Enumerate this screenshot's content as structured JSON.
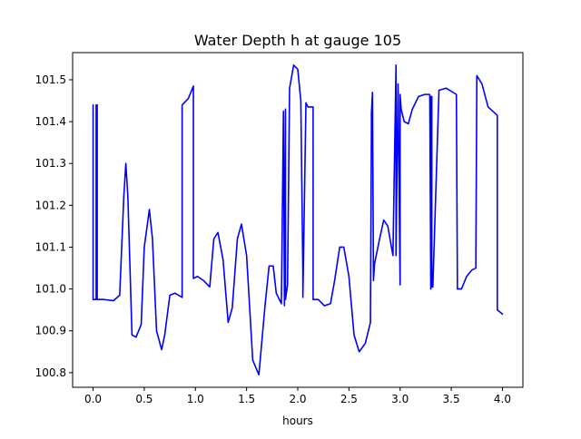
{
  "figure": {
    "title": "Water Depth h at gauge 105",
    "xlabel": "hours"
  },
  "chart_data": {
    "type": "line",
    "title": "Water Depth h at gauge 105",
    "xlabel": "hours",
    "ylabel": "",
    "xlim": [
      -0.2,
      4.2
    ],
    "ylim": [
      100.765,
      101.565
    ],
    "xticks": [
      0.0,
      0.5,
      1.0,
      1.5,
      2.0,
      2.5,
      3.0,
      3.5,
      4.0
    ],
    "xtick_labels": [
      "0.0",
      "0.5",
      "1.0",
      "1.5",
      "2.0",
      "2.5",
      "3.0",
      "3.5",
      "4.0"
    ],
    "yticks": [
      100.8,
      100.9,
      101.0,
      101.1,
      101.2,
      101.3,
      101.4,
      101.5
    ],
    "ytick_labels": [
      "100.8",
      "100.9",
      "101.0",
      "101.1",
      "101.2",
      "101.3",
      "101.4",
      "101.5"
    ],
    "grid": false,
    "color": "#0000ff",
    "series": [
      {
        "x": [
          0.0,
          0.0,
          0.03,
          0.03,
          0.04,
          0.04,
          0.1,
          0.2,
          0.26,
          0.3,
          0.32,
          0.34,
          0.38,
          0.42,
          0.47,
          0.5,
          0.55,
          0.58,
          0.62,
          0.67,
          0.7,
          0.75,
          0.8,
          0.87,
          0.87,
          0.93,
          0.98,
          0.98,
          1.02,
          1.08,
          1.14,
          1.18,
          1.22,
          1.27,
          1.32,
          1.36,
          1.41,
          1.45,
          1.5,
          1.56,
          1.62,
          1.68,
          1.72,
          1.76,
          1.79,
          1.84,
          1.86,
          1.87,
          1.88,
          1.88,
          1.9,
          1.92,
          1.96,
          2.0,
          2.03,
          2.05,
          2.05,
          2.08,
          2.1,
          2.1,
          2.15,
          2.15,
          2.2,
          2.26,
          2.32,
          2.36,
          2.41,
          2.45,
          2.5,
          2.55,
          2.6,
          2.66,
          2.71,
          2.72,
          2.72,
          2.73,
          2.74,
          2.75,
          2.8,
          2.84,
          2.88,
          2.93,
          2.96,
          2.96,
          2.98,
          3.0,
          3.0,
          3.01,
          3.04,
          3.08,
          3.12,
          3.18,
          3.24,
          3.29,
          3.3,
          3.3,
          3.31,
          3.31,
          3.32,
          3.38,
          3.45,
          3.55,
          3.56,
          3.56,
          3.6,
          3.65,
          3.7,
          3.74,
          3.75,
          3.75,
          3.8,
          3.86,
          3.95,
          3.95,
          4.0
        ],
        "y": [
          101.44,
          100.975,
          100.975,
          101.44,
          101.44,
          100.975,
          100.975,
          100.972,
          100.985,
          101.22,
          101.3,
          101.22,
          100.89,
          100.885,
          100.915,
          101.1,
          101.19,
          101.12,
          100.9,
          100.855,
          100.89,
          100.985,
          100.99,
          100.98,
          101.44,
          101.455,
          101.485,
          101.025,
          101.03,
          101.02,
          101.005,
          101.12,
          101.135,
          101.07,
          100.92,
          100.955,
          101.12,
          101.155,
          101.08,
          100.83,
          100.795,
          100.96,
          101.055,
          101.055,
          100.99,
          100.965,
          101.425,
          100.96,
          101.43,
          100.975,
          101.01,
          101.48,
          101.535,
          101.525,
          101.45,
          101.035,
          100.98,
          101.445,
          101.435,
          101.435,
          101.435,
          100.975,
          100.975,
          100.96,
          100.965,
          101.02,
          101.1,
          101.1,
          101.03,
          100.89,
          100.85,
          100.87,
          100.92,
          101.39,
          101.42,
          101.47,
          101.02,
          101.06,
          101.12,
          101.165,
          101.15,
          101.08,
          101.535,
          101.08,
          101.49,
          101.01,
          101.465,
          101.43,
          101.4,
          101.395,
          101.43,
          101.46,
          101.465,
          101.465,
          101.0,
          101.46,
          101.46,
          101.005,
          101.005,
          101.475,
          101.48,
          101.465,
          101.005,
          101.0,
          101.0,
          101.03,
          101.045,
          101.05,
          101.51,
          101.51,
          101.49,
          101.435,
          101.415,
          100.95,
          100.94
        ]
      }
    ]
  }
}
